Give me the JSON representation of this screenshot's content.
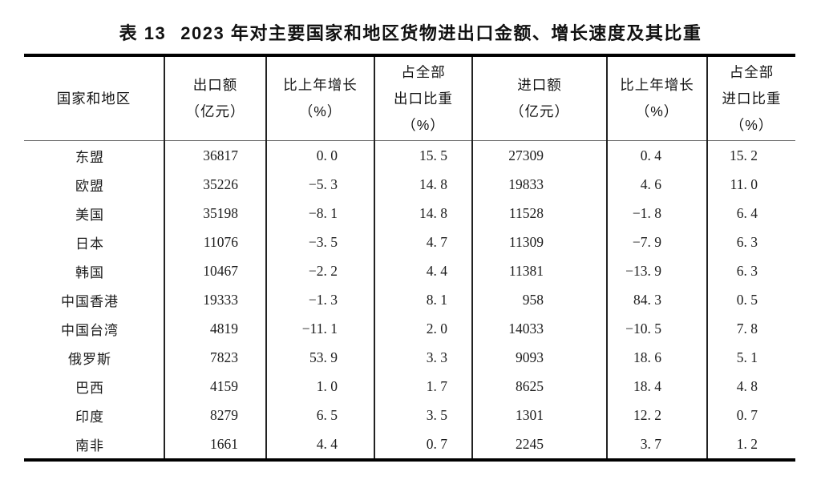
{
  "title": {
    "prefix": "表 13",
    "text": "2023 年对主要国家和地区货物进出口金额、增长速度及其比重"
  },
  "table": {
    "columns": [
      {
        "l1": "国家和地区"
      },
      {
        "l1": "出口额",
        "l2": "（亿元）"
      },
      {
        "l1": "比上年增长",
        "l2": "（%）"
      },
      {
        "l1": "占全部",
        "l2": "出口比重",
        "l3": "（%）"
      },
      {
        "l1": "进口额",
        "l2": "（亿元）"
      },
      {
        "l1": "比上年增长",
        "l2": "（%）"
      },
      {
        "l1": "占全部",
        "l2": "进口比重",
        "l3": "（%）"
      }
    ],
    "rows": [
      [
        "东盟",
        "36817",
        "0. 0",
        "15. 5",
        "27309",
        "0. 4",
        "15. 2"
      ],
      [
        "欧盟",
        "35226",
        "−5. 3",
        "14. 8",
        "19833",
        "4. 6",
        "11. 0"
      ],
      [
        "美国",
        "35198",
        "−8. 1",
        "14. 8",
        "11528",
        "−1. 8",
        "6. 4"
      ],
      [
        "日本",
        "11076",
        "−3. 5",
        "4. 7",
        "11309",
        "−7. 9",
        "6. 3"
      ],
      [
        "韩国",
        "10467",
        "−2. 2",
        "4. 4",
        "11381",
        "−13. 9",
        "6. 3"
      ],
      [
        "中国香港",
        "19333",
        "−1. 3",
        "8. 1",
        "958",
        "84. 3",
        "0. 5"
      ],
      [
        "中国台湾",
        "4819",
        "−11. 1",
        "2. 0",
        "14033",
        "−10. 5",
        "7. 8"
      ],
      [
        "俄罗斯",
        "7823",
        "53. 9",
        "3. 3",
        "9093",
        "18. 6",
        "5. 1"
      ],
      [
        "巴西",
        "4159",
        "1. 0",
        "1. 7",
        "8625",
        "18. 4",
        "4. 8"
      ],
      [
        "印度",
        "8279",
        "6. 5",
        "3. 5",
        "1301",
        "12. 2",
        "0. 7"
      ],
      [
        "南非",
        "1661",
        "4. 4",
        "0. 7",
        "2245",
        "3. 7",
        "1. 2"
      ]
    ]
  }
}
